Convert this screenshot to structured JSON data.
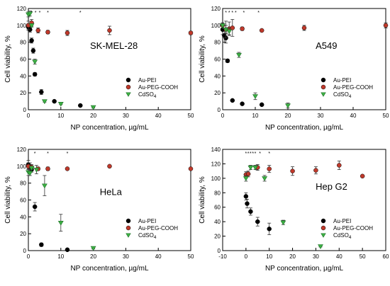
{
  "colors": {
    "Au-PEI": "#000000",
    "Au-PEG-COOH": "#c0392b",
    "CdSO4": "#3cb043"
  },
  "chart_data": [
    {
      "type": "scatter",
      "panel_label": "SK-MEL-28",
      "xlabel": "NP concentration, µg/mL",
      "ylabel": "Cell viability, %",
      "xlim": [
        0,
        50
      ],
      "ylim": [
        0,
        120
      ],
      "xticks": [
        "0",
        "10",
        "20",
        "30",
        "40",
        "50"
      ],
      "yticks": [
        "0",
        "20",
        "40",
        "60",
        "80",
        "100",
        "120"
      ],
      "legend": {
        "placement": "bottom-right",
        "entries": [
          "Au-PEI",
          "Au-PEG-COOH",
          "CdSO4"
        ]
      },
      "asterisks": [
        {
          "x": 1,
          "text": "*"
        },
        {
          "x": 2.2,
          "text": "*"
        },
        {
          "x": 3.5,
          "text": "*"
        },
        {
          "x": 6,
          "text": "*"
        },
        {
          "x": 16,
          "text": "*"
        }
      ],
      "series": [
        {
          "name": "Au-PEI",
          "marker": "circle",
          "points": [
            {
              "x": 0,
              "y": 98,
              "err": 4
            },
            {
              "x": 0.5,
              "y": 95,
              "err": 3
            },
            {
              "x": 1,
              "y": 82,
              "err": 3
            },
            {
              "x": 1.5,
              "y": 70,
              "err": 3
            },
            {
              "x": 2,
              "y": 42,
              "err": 2
            },
            {
              "x": 4,
              "y": 21,
              "err": 3
            },
            {
              "x": 8,
              "y": 10,
              "err": 1
            },
            {
              "x": 16,
              "y": 5,
              "err": 1
            }
          ]
        },
        {
          "name": "Au-PEG-COOH",
          "marker": "circle",
          "points": [
            {
              "x": 0,
              "y": 100,
              "err": 5
            },
            {
              "x": 1,
              "y": 103,
              "err": 4
            },
            {
              "x": 3,
              "y": 94,
              "err": 3
            },
            {
              "x": 6,
              "y": 92,
              "err": 2
            },
            {
              "x": 12,
              "y": 91,
              "err": 3
            },
            {
              "x": 25,
              "y": 94,
              "err": 5
            },
            {
              "x": 50,
              "y": 91,
              "err": 2
            }
          ]
        },
        {
          "name": "CdSO4",
          "marker": "triangle",
          "points": [
            {
              "x": 0,
              "y": 113,
              "err": 3
            },
            {
              "x": 0.5,
              "y": 114,
              "err": 3
            },
            {
              "x": 1,
              "y": 100,
              "err": 2
            },
            {
              "x": 2,
              "y": 57,
              "err": 3
            },
            {
              "x": 5,
              "y": 10,
              "err": 1
            },
            {
              "x": 10,
              "y": 7,
              "err": 1
            },
            {
              "x": 20,
              "y": 3,
              "err": 1
            }
          ]
        }
      ]
    },
    {
      "type": "scatter",
      "panel_label": "A549",
      "xlabel": "NP concentration, µg/mL",
      "ylabel": "Cell viability, %",
      "xlim": [
        0,
        50
      ],
      "ylim": [
        0,
        120
      ],
      "xticks": [
        "0",
        "10",
        "20",
        "30",
        "40",
        "50"
      ],
      "yticks": [
        "0",
        "20",
        "40",
        "60",
        "80",
        "100",
        "120"
      ],
      "legend": {
        "placement": "bottom-right",
        "entries": [
          "Au-PEI",
          "Au-PEG-COOH",
          "CdSO4"
        ]
      },
      "asterisks": [
        {
          "x": 1,
          "text": "*"
        },
        {
          "x": 2,
          "text": "*"
        },
        {
          "x": 3,
          "text": "*"
        },
        {
          "x": 4,
          "text": "*"
        },
        {
          "x": 6.5,
          "text": "*"
        },
        {
          "x": 11,
          "text": "*"
        }
      ],
      "series": [
        {
          "name": "Au-PEI",
          "marker": "circle",
          "points": [
            {
              "x": 0,
              "y": 95,
              "err": 6
            },
            {
              "x": 0.5,
              "y": 88,
              "err": 8
            },
            {
              "x": 1,
              "y": 85,
              "err": 6
            },
            {
              "x": 1.5,
              "y": 58,
              "err": 2
            },
            {
              "x": 3,
              "y": 11,
              "err": 1
            },
            {
              "x": 6,
              "y": 7,
              "err": 1
            },
            {
              "x": 12,
              "y": 6,
              "err": 1
            }
          ]
        },
        {
          "name": "Au-PEG-COOH",
          "marker": "circle",
          "points": [
            {
              "x": 0,
              "y": 100,
              "err": 3
            },
            {
              "x": 1,
              "y": 95,
              "err": 10
            },
            {
              "x": 2,
              "y": 96,
              "err": 8
            },
            {
              "x": 3,
              "y": 97,
              "err": 10
            },
            {
              "x": 6,
              "y": 96,
              "err": 2
            },
            {
              "x": 12,
              "y": 94,
              "err": 1
            },
            {
              "x": 25,
              "y": 97,
              "err": 3
            },
            {
              "x": 50,
              "y": 100,
              "err": 3
            }
          ]
        },
        {
          "name": "CdSO4",
          "marker": "triangle",
          "points": [
            {
              "x": 0,
              "y": 100,
              "err": 3
            },
            {
              "x": 1,
              "y": 95,
              "err": 5
            },
            {
              "x": 2,
              "y": 93,
              "err": 4
            },
            {
              "x": 5,
              "y": 65,
              "err": 3
            },
            {
              "x": 10,
              "y": 16,
              "err": 4
            },
            {
              "x": 20,
              "y": 5,
              "err": 3
            }
          ]
        }
      ]
    },
    {
      "type": "scatter",
      "panel_label": "HeLa",
      "xlabel": "NP concentration, µg/mL",
      "ylabel": "Cell viability, %",
      "xlim": [
        0,
        50
      ],
      "ylim": [
        0,
        120
      ],
      "xticks": [
        "0",
        "10",
        "20",
        "30",
        "40",
        "50"
      ],
      "yticks": [
        "0",
        "20",
        "40",
        "60",
        "80",
        "100",
        "120"
      ],
      "legend": {
        "placement": "bottom-right",
        "entries": [
          "Au-PEI",
          "Au-PEG-COOH",
          "CdSO4"
        ]
      },
      "asterisks": [
        {
          "x": 2,
          "text": "*"
        },
        {
          "x": 6,
          "text": "*"
        },
        {
          "x": 12,
          "text": "*"
        }
      ],
      "series": [
        {
          "name": "Au-PEI",
          "marker": "circle",
          "points": [
            {
              "x": 0,
              "y": 102,
              "err": 5
            },
            {
              "x": 0.5,
              "y": 100,
              "err": 4
            },
            {
              "x": 1,
              "y": 96,
              "err": 3
            },
            {
              "x": 2,
              "y": 52,
              "err": 5
            },
            {
              "x": 4,
              "y": 7,
              "err": 2
            },
            {
              "x": 12,
              "y": 1,
              "err": 1
            }
          ]
        },
        {
          "name": "Au-PEG-COOH",
          "marker": "circle",
          "points": [
            {
              "x": 0,
              "y": 100,
              "err": 4
            },
            {
              "x": 1,
              "y": 99,
              "err": 3
            },
            {
              "x": 3,
              "y": 97,
              "err": 2
            },
            {
              "x": 6,
              "y": 97,
              "err": 2
            },
            {
              "x": 12,
              "y": 97,
              "err": 1
            },
            {
              "x": 25,
              "y": 100,
              "err": 1
            },
            {
              "x": 50,
              "y": 97,
              "err": 1
            }
          ]
        },
        {
          "name": "CdSO4",
          "marker": "triangle",
          "points": [
            {
              "x": 0,
              "y": 93,
              "err": 4
            },
            {
              "x": 0.5,
              "y": 92,
              "err": 3
            },
            {
              "x": 1,
              "y": 98,
              "err": 2
            },
            {
              "x": 2.5,
              "y": 96,
              "err": 5
            },
            {
              "x": 5,
              "y": 77,
              "err": 12
            },
            {
              "x": 10,
              "y": 33,
              "err": 10
            },
            {
              "x": 20,
              "y": 3,
              "err": 1
            }
          ]
        }
      ]
    },
    {
      "type": "scatter",
      "panel_label": "Hep G2",
      "xlabel": "NP concentration, µg/mL",
      "ylabel": "Cell viability, %",
      "xlim": [
        -10,
        60
      ],
      "ylim": [
        0,
        140
      ],
      "xticks": [
        "-10",
        "0",
        "10",
        "20",
        "30",
        "40",
        "50",
        "60"
      ],
      "yticks": [
        "0",
        "20",
        "40",
        "60",
        "80",
        "100",
        "120",
        "140"
      ],
      "legend": {
        "placement": "bottom-right",
        "entries": [
          "Au-PEI",
          "Au-PEG-COOH",
          "CdSO4"
        ]
      },
      "asterisks": [
        {
          "x": 0,
          "text": "*"
        },
        {
          "x": 1,
          "text": "*"
        },
        {
          "x": 2,
          "text": "*"
        },
        {
          "x": 3,
          "text": "*"
        },
        {
          "x": 4,
          "text": "*"
        },
        {
          "x": 6,
          "text": "*"
        },
        {
          "x": 10,
          "text": "*"
        }
      ],
      "series": [
        {
          "name": "Au-PEI",
          "marker": "circle",
          "points": [
            {
              "x": 0,
              "y": 75,
              "err": 5
            },
            {
              "x": 0.5,
              "y": 65,
              "err": 6
            },
            {
              "x": 2,
              "y": 54,
              "err": 5
            },
            {
              "x": 5,
              "y": 40,
              "err": 6
            },
            {
              "x": 10,
              "y": 30,
              "err": 8
            }
          ]
        },
        {
          "name": "Au-PEG-COOH",
          "marker": "circle",
          "points": [
            {
              "x": 0,
              "y": 105,
              "err": 4
            },
            {
              "x": 1,
              "y": 106,
              "err": 4
            },
            {
              "x": 5,
              "y": 115,
              "err": 4
            },
            {
              "x": 10,
              "y": 113,
              "err": 5
            },
            {
              "x": 20,
              "y": 110,
              "err": 6
            },
            {
              "x": 30,
              "y": 111,
              "err": 5
            },
            {
              "x": 40,
              "y": 118,
              "err": 6
            },
            {
              "x": 50,
              "y": 103,
              "err": 1
            }
          ]
        },
        {
          "name": "CdSO4",
          "marker": "triangle",
          "points": [
            {
              "x": 0,
              "y": 100,
              "err": 4
            },
            {
              "x": 2,
              "y": 115,
              "err": 3
            },
            {
              "x": 4,
              "y": 115,
              "err": 3
            },
            {
              "x": 8,
              "y": 100,
              "err": 4
            },
            {
              "x": 16,
              "y": 39,
              "err": 3
            },
            {
              "x": 32,
              "y": 6,
              "err": 1
            }
          ]
        }
      ]
    }
  ]
}
